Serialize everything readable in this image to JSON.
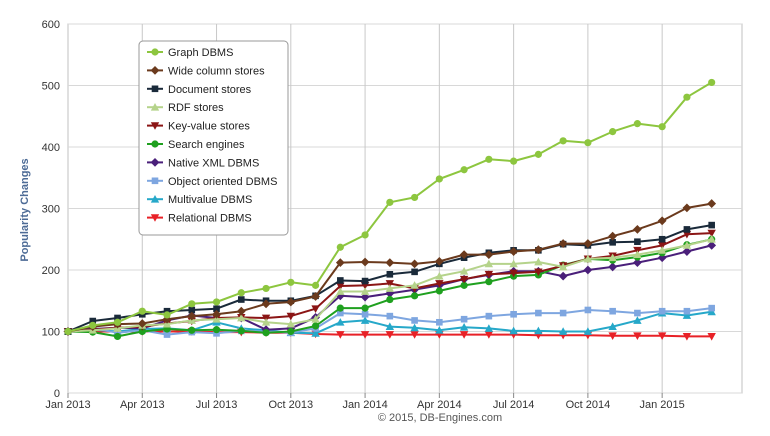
{
  "chart_data": {
    "type": "line",
    "title": "",
    "xlabel": "",
    "ylabel": "Popularity Changes",
    "credit": "© 2015, DB-Engines.com",
    "ylim": [
      0,
      600
    ],
    "y_ticks": [
      "0",
      "100",
      "200",
      "300",
      "400",
      "500",
      "600"
    ],
    "x_tick_labels": [
      "Jan 2013",
      "Apr 2013",
      "Jul 2013",
      "Oct 2013",
      "Jan 2014",
      "Apr 2014",
      "Jul 2014",
      "Oct 2014",
      "Jan 2015"
    ],
    "x_tick_index": [
      0,
      3,
      6,
      9,
      12,
      15,
      18,
      21,
      24
    ],
    "grid": true,
    "legend": "top-left",
    "x": [
      "Jan 2013",
      "Feb 2013",
      "Mar 2013",
      "Apr 2013",
      "May 2013",
      "Jun 2013",
      "Jul 2013",
      "Aug 2013",
      "Sep 2013",
      "Oct 2013",
      "Nov 2013",
      "Dec 2013",
      "Jan 2014",
      "Feb 2014",
      "Mar 2014",
      "Apr 2014",
      "May 2014",
      "Jun 2014",
      "Jul 2014",
      "Aug 2014",
      "Sep 2014",
      "Oct 2014",
      "Nov 2014",
      "Dec 2014",
      "Jan 2015",
      "Feb 2015",
      "Mar 2015"
    ],
    "series": [
      {
        "name": "Graph DBMS",
        "color": "#8dc63f",
        "marker": "circle",
        "values": [
          100,
          110,
          115,
          133,
          127,
          145,
          148,
          163,
          170,
          180,
          175,
          237,
          257,
          310,
          318,
          348,
          363,
          380,
          377,
          388,
          410,
          407,
          425,
          438,
          433,
          481,
          505
        ]
      },
      {
        "name": "Wide column stores",
        "color": "#6b3a1d",
        "marker": "diamond",
        "values": [
          100,
          108,
          112,
          113,
          120,
          125,
          128,
          133,
          145,
          148,
          157,
          212,
          213,
          212,
          210,
          214,
          225,
          225,
          230,
          233,
          243,
          243,
          255,
          266,
          280,
          301,
          308
        ]
      },
      {
        "name": "Document stores",
        "color": "#1a2a3a",
        "marker": "square",
        "values": [
          100,
          117,
          122,
          128,
          133,
          135,
          137,
          152,
          150,
          150,
          158,
          183,
          182,
          193,
          197,
          210,
          220,
          228,
          232,
          232,
          242,
          240,
          245,
          246,
          250,
          266,
          273
        ]
      },
      {
        "name": "RDF stores",
        "color": "#b5d38b",
        "marker": "triangle",
        "values": [
          100,
          102,
          105,
          110,
          112,
          118,
          120,
          122,
          115,
          112,
          120,
          165,
          165,
          170,
          175,
          190,
          198,
          210,
          210,
          213,
          205,
          218,
          220,
          225,
          232,
          240,
          250
        ]
      },
      {
        "name": "Key-value stores",
        "color": "#8b1515",
        "marker": "triangle-down",
        "values": [
          100,
          103,
          106,
          108,
          113,
          117,
          122,
          123,
          122,
          125,
          137,
          174,
          175,
          178,
          170,
          178,
          185,
          193,
          195,
          197,
          207,
          218,
          223,
          232,
          240,
          258,
          260
        ]
      },
      {
        "name": "Search engines",
        "color": "#1fa01f",
        "marker": "circle",
        "values": [
          100,
          99,
          92,
          100,
          104,
          102,
          103,
          101,
          98,
          100,
          109,
          138,
          138,
          152,
          158,
          166,
          175,
          181,
          190,
          192,
          208,
          218,
          216,
          221,
          228,
          241,
          250
        ]
      },
      {
        "name": "Native XML DBMS",
        "color": "#4a1f7a",
        "marker": "diamond",
        "values": [
          100,
          104,
          106,
          105,
          118,
          126,
          122,
          122,
          103,
          105,
          123,
          158,
          156,
          162,
          168,
          175,
          185,
          192,
          198,
          198,
          190,
          200,
          205,
          212,
          220,
          230,
          240
        ]
      },
      {
        "name": "Object oriented DBMS",
        "color": "#7ea6e0",
        "marker": "square",
        "values": [
          100,
          105,
          98,
          102,
          95,
          99,
          97,
          101,
          100,
          98,
          105,
          130,
          128,
          125,
          118,
          115,
          120,
          125,
          128,
          130,
          130,
          135,
          133,
          130,
          133,
          133,
          138
        ]
      },
      {
        "name": "Multivalue DBMS",
        "color": "#26a8c9",
        "marker": "triangle",
        "values": [
          100,
          103,
          100,
          104,
          105,
          102,
          115,
          105,
          102,
          98,
          97,
          115,
          118,
          108,
          106,
          102,
          107,
          105,
          101,
          101,
          100,
          100,
          108,
          118,
          130,
          126,
          132
        ]
      },
      {
        "name": "Relational DBMS",
        "color": "#e82127",
        "marker": "triangle-down",
        "values": [
          100,
          100,
          100,
          100,
          100,
          100,
          99,
          99,
          98,
          98,
          96,
          95,
          95,
          95,
          95,
          95,
          95,
          95,
          95,
          94,
          94,
          94,
          93,
          93,
          93,
          92,
          92
        ]
      }
    ]
  }
}
